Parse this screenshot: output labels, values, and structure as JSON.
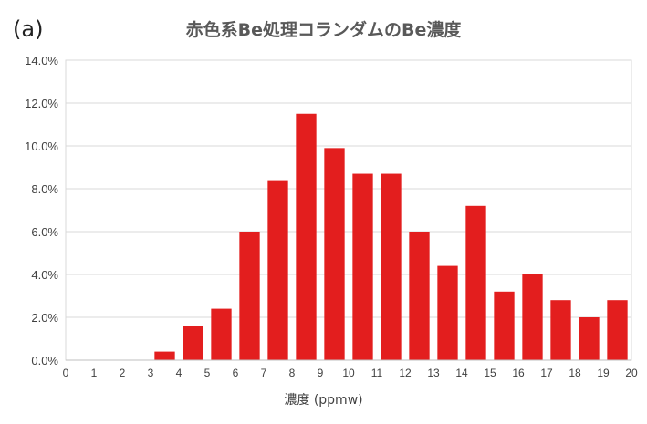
{
  "panel_label": "(a)",
  "chart_data": {
    "type": "bar",
    "title": "赤色系Be処理コランダムのBe濃度",
    "xlabel": "濃度 (ppmw)",
    "ylabel": "",
    "x_ticks": [
      "0",
      "1",
      "2",
      "3",
      "4",
      "5",
      "6",
      "7",
      "8",
      "9",
      "10",
      "11",
      "12",
      "13",
      "14",
      "15",
      "16",
      "17",
      "18",
      "19",
      "20"
    ],
    "y_ticks": [
      "0.0%",
      "2.0%",
      "4.0%",
      "6.0%",
      "8.0%",
      "10.0%",
      "12.0%",
      "14.0%"
    ],
    "categories": [
      "0-1",
      "1-2",
      "2-3",
      "3-4",
      "4-5",
      "5-6",
      "6-7",
      "7-8",
      "8-9",
      "9-10",
      "10-11",
      "11-12",
      "12-13",
      "13-14",
      "14-15",
      "15-16",
      "16-17",
      "17-18",
      "18-19",
      "19-20"
    ],
    "values": [
      0,
      0,
      0,
      0.4,
      1.6,
      2.4,
      6.0,
      8.4,
      11.5,
      9.9,
      8.7,
      8.7,
      6.0,
      4.4,
      7.2,
      3.2,
      4.0,
      2.8,
      2.0,
      2.8
    ],
    "value_unit": "%",
    "xlim": [
      0,
      20
    ],
    "ylim": [
      0,
      14
    ],
    "bar_color": "#e31e1e",
    "grid": true,
    "legend": "none"
  }
}
